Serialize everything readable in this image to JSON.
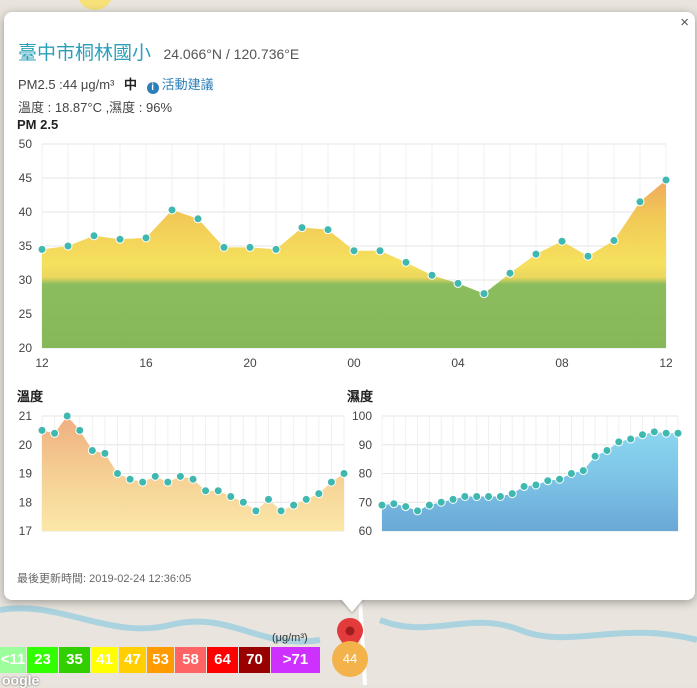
{
  "popup": {
    "close_label": "×",
    "station_name": "臺中市桐林國小",
    "coords": "24.066°N / 120.736°E",
    "pm25_text": "PM2.5 :44 μg/m³",
    "pm25_level": "中",
    "info_icon": "i",
    "advice_link": "活動建議",
    "env_text": "溫度 : 18.87°C ,濕度 : 96%",
    "pm_chart_title": "PM 2.5",
    "temp_chart_title": "溫度",
    "hum_chart_title": "濕度",
    "updated_text": "最後更新時間: 2019-02-24 12:36:05"
  },
  "legend": {
    "unit": "(μg/m³)",
    "cells": [
      {
        "label": "<11",
        "color": "#9cff9c"
      },
      {
        "label": "23",
        "color": "#31ff00"
      },
      {
        "label": "35",
        "color": "#31cf00"
      },
      {
        "label": "41",
        "color": "#ffff00"
      },
      {
        "label": "47",
        "color": "#ffcf00"
      },
      {
        "label": "53",
        "color": "#ff9a00"
      },
      {
        "label": "58",
        "color": "#ff6464"
      },
      {
        "label": "64",
        "color": "#ff0000"
      },
      {
        "label": "70",
        "color": "#990000"
      },
      {
        "label": ">71",
        "color": "#ce30ff"
      }
    ]
  },
  "map": {
    "marker_value": "44",
    "google_label": "oogle"
  },
  "chart_data": [
    {
      "type": "area",
      "title": "PM 2.5",
      "x_ticks": [
        "12",
        "16",
        "20",
        "00",
        "04",
        "08",
        "12"
      ],
      "ylim": [
        20,
        50
      ],
      "y_ticks": [
        20,
        25,
        30,
        35,
        40,
        45,
        50
      ],
      "grid": true,
      "series": [
        {
          "values": [
            34.5,
            35,
            36.5,
            36,
            36.2,
            40.3,
            39,
            34.8,
            34.8,
            34.5,
            37.7,
            37.4,
            34.3,
            34.3,
            32.6,
            30.7,
            29.5,
            28,
            31,
            33.8,
            35.7,
            33.5,
            35.8,
            41.5,
            44.7
          ]
        }
      ]
    },
    {
      "type": "area",
      "title": "溫度",
      "ylim": [
        17,
        21
      ],
      "y_ticks": [
        17,
        18,
        19,
        20,
        21
      ],
      "grid": true,
      "series": [
        {
          "values": [
            20.5,
            20.4,
            21,
            20.5,
            19.8,
            19.7,
            19,
            18.8,
            18.7,
            18.9,
            18.7,
            18.9,
            18.8,
            18.4,
            18.4,
            18.2,
            18,
            17.7,
            18.1,
            17.7,
            17.9,
            18.1,
            18.3,
            18.7,
            19
          ]
        }
      ]
    },
    {
      "type": "area",
      "title": "濕度",
      "ylim": [
        60,
        100
      ],
      "y_ticks": [
        60,
        70,
        80,
        90,
        100
      ],
      "grid": true,
      "series": [
        {
          "values": [
            69,
            69.5,
            68.5,
            67,
            69,
            70,
            71,
            72,
            72,
            72,
            72,
            73,
            75.5,
            76,
            77.5,
            78,
            80,
            81,
            86,
            88,
            91,
            92,
            93.5,
            94.5,
            94,
            94
          ]
        }
      ]
    }
  ]
}
